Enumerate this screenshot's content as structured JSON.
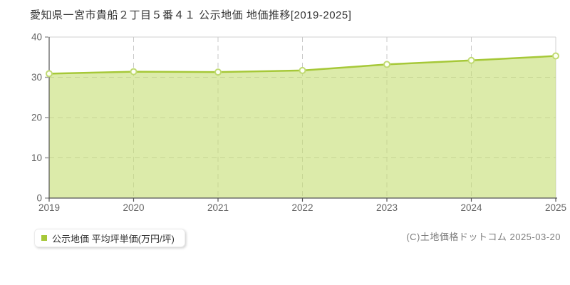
{
  "page": {
    "title": "愛知県一宮市貴船２丁目５番４１ 公示地価 地価推移[2019-2025]",
    "footer": "(C)土地価格ドットコム 2025-03-20"
  },
  "legend": {
    "label": "公示地価 平均坪単価(万円/坪)",
    "marker_color": "#a6c838"
  },
  "chart_data": {
    "type": "area",
    "title": "愛知県一宮市貴船２丁目５番４１ 公示地価 地価推移[2019-2025]",
    "categories": [
      "2019",
      "2020",
      "2021",
      "2022",
      "2023",
      "2024",
      "2025"
    ],
    "series": [
      {
        "name": "公示地価 平均坪単価(万円/坪)",
        "values": [
          30.9,
          31.4,
          31.3,
          31.7,
          33.2,
          34.2,
          35.3
        ]
      }
    ],
    "xlabel": "",
    "ylabel": "",
    "ylim": [
      0,
      40
    ],
    "yticks": [
      0,
      10,
      20,
      30,
      40
    ],
    "grid": true,
    "legend_position": "bottom-left",
    "colors": {
      "line": "#a6c838",
      "fill": "#c6df76",
      "marker_fill": "#fdfff4",
      "marker_stroke": "#c0da72",
      "grid": "#c9c9c9",
      "border": "#d2d2d2",
      "axis": "#545454",
      "tick": "#9a9a9a",
      "tick_text": "#666666"
    }
  }
}
